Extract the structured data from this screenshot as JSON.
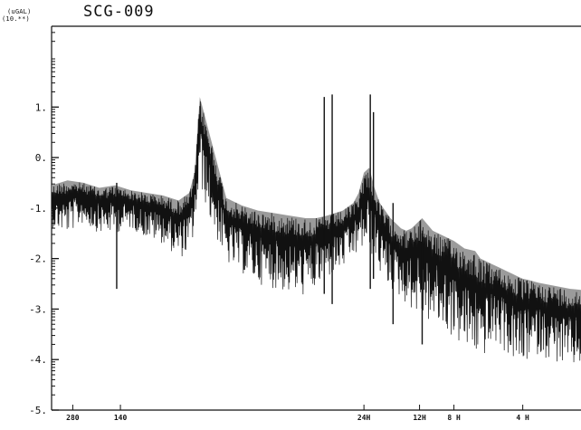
{
  "chart_data": {
    "type": "line",
    "title": "SCG-009",
    "units": [
      "(uGAL)",
      "(10.**)"
    ],
    "y_scale": "log10",
    "ylim": [
      -5,
      2.6
    ],
    "y_ticks": [
      {
        "value": 1,
        "label": "1."
      },
      {
        "value": 0,
        "label": "0."
      },
      {
        "value": -1,
        "label": "-1."
      },
      {
        "value": -2,
        "label": "-2."
      },
      {
        "value": -3,
        "label": "-3."
      },
      {
        "value": -4,
        "label": "-4."
      },
      {
        "value": -5,
        "label": "-5."
      }
    ],
    "x_ticks": [
      "280",
      "140",
      "24H",
      "12H",
      "8 H",
      "4 H"
    ],
    "series": [
      {
        "x": [
          0,
          3,
          6,
          9,
          12,
          15,
          18,
          21,
          24,
          26,
          27,
          28,
          30,
          33,
          36,
          39,
          42,
          45,
          48,
          50,
          52,
          55,
          57,
          58,
          59,
          60,
          61,
          62,
          63,
          64,
          65,
          66,
          67,
          68,
          69,
          70,
          72,
          74,
          76,
          78,
          80,
          81,
          82,
          83,
          84,
          85,
          86,
          87,
          88,
          89,
          90,
          92,
          94,
          96,
          98,
          100
        ],
        "upper": [
          -0.55,
          -0.45,
          -0.5,
          -0.6,
          -0.55,
          -0.65,
          -0.7,
          -0.75,
          -0.85,
          -0.7,
          -0.3,
          1.2,
          0.4,
          -0.8,
          -0.95,
          -1.05,
          -1.1,
          -1.15,
          -1.2,
          -1.2,
          -1.15,
          -1.05,
          -0.9,
          -0.7,
          -0.3,
          -0.2,
          -0.6,
          -0.9,
          -1.05,
          -1.2,
          -1.3,
          -1.4,
          -1.45,
          -1.4,
          -1.3,
          -1.2,
          -1.45,
          -1.55,
          -1.65,
          -1.8,
          -1.85,
          -2.0,
          -2.05,
          -2.1,
          -2.15,
          -2.2,
          -2.25,
          -2.3,
          -2.35,
          -2.4,
          -2.42,
          -2.48,
          -2.52,
          -2.56,
          -2.6,
          -2.62
        ],
        "lower": [
          -1.4,
          -1.5,
          -1.3,
          -1.5,
          -1.5,
          -1.4,
          -1.6,
          -1.7,
          -2.0,
          -1.9,
          -1.5,
          -0.5,
          -1.3,
          -2.1,
          -2.3,
          -2.5,
          -2.6,
          -2.7,
          -2.75,
          -2.6,
          -2.4,
          -2.2,
          -2.0,
          -1.9,
          -1.8,
          -1.9,
          -2.0,
          -2.3,
          -2.5,
          -2.6,
          -2.7,
          -2.8,
          -2.9,
          -3.0,
          -3.1,
          -3.2,
          -3.3,
          -3.4,
          -3.6,
          -3.8,
          -3.9,
          -4.0,
          -3.9,
          -3.8,
          -3.7,
          -3.8,
          -3.9,
          -4.0,
          -4.1,
          -4.2,
          -4.0,
          -3.9,
          -4.0,
          -4.1,
          -4.2,
          -4.1
        ]
      }
    ],
    "spikes": [
      {
        "x": 51.5,
        "top": 1.2,
        "bottom": -2.7
      },
      {
        "x": 53.0,
        "top": 1.25,
        "bottom": -2.9
      },
      {
        "x": 60.2,
        "top": 1.25,
        "bottom": -2.6
      },
      {
        "x": 60.8,
        "top": 0.9,
        "bottom": -2.4
      },
      {
        "x": 64.5,
        "top": -0.9,
        "bottom": -3.3
      },
      {
        "x": 12.3,
        "top": -0.5,
        "bottom": -2.6
      },
      {
        "x": 70.0,
        "top": -1.5,
        "bottom": -3.7
      }
    ]
  }
}
